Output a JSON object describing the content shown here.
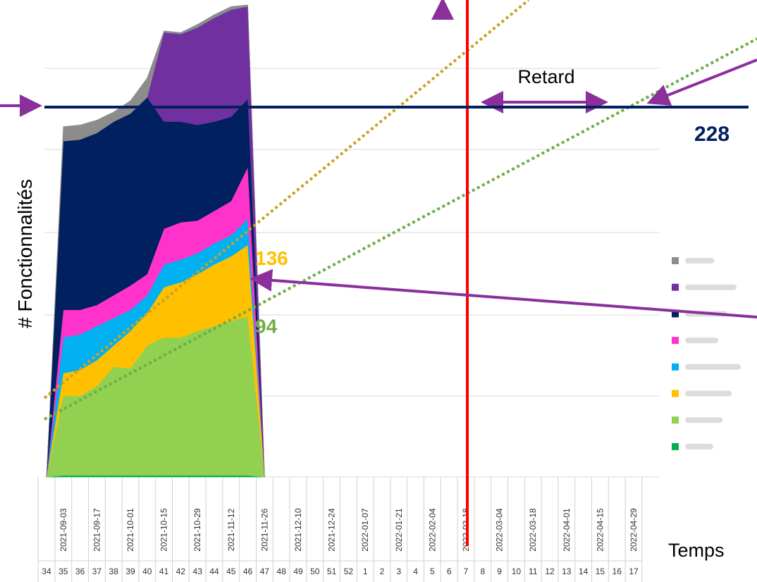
{
  "chart_data": {
    "type": "area",
    "stacked": true,
    "ylabel": "# Fonctionnalités",
    "xlabel": "Temps",
    "categories": [
      "34",
      "35",
      "36",
      "37",
      "38",
      "39",
      "40",
      "41",
      "42",
      "43",
      "44",
      "45",
      "46",
      "47",
      "48",
      "49",
      "50",
      "51",
      "52",
      "1",
      "2",
      "3",
      "4",
      "5",
      "6",
      "7",
      "8",
      "9",
      "10",
      "11",
      "12",
      "13",
      "14",
      "15",
      "16",
      "17"
    ],
    "dates": [
      null,
      "2021-09-03",
      null,
      "2021-09-17",
      null,
      "2021-10-01",
      null,
      "2021-10-15",
      null,
      "2021-10-29",
      null,
      "2021-11-12",
      null,
      "2021-11-26",
      null,
      "2021-12-10",
      null,
      "2021-12-24",
      null,
      "2022-01-07",
      null,
      "2022-01-21",
      null,
      "2022-02-04",
      null,
      "2022-02-18",
      null,
      "2022-03-04",
      null,
      "2022-03-18",
      null,
      "2022-04-01",
      null,
      "2022-04-15",
      null,
      "2022-04-29"
    ],
    "ylim": [
      0,
      294
    ],
    "series": [
      {
        "color": "#00b050",
        "values": [
          0,
          1,
          1,
          1,
          1,
          1,
          1,
          1,
          1,
          1,
          1,
          1,
          1,
          0,
          null,
          null,
          null,
          null,
          null,
          null,
          null,
          null,
          null,
          null,
          null,
          null,
          null,
          null,
          null,
          null,
          null,
          null,
          null,
          null,
          null,
          null
        ]
      },
      {
        "color": "#92d050",
        "values": [
          0,
          49,
          49,
          55,
          67,
          66,
          80,
          85,
          85,
          89,
          92,
          95,
          98,
          0,
          null,
          null,
          null,
          null,
          null,
          null,
          null,
          null,
          null,
          null,
          null,
          null,
          null,
          null,
          null,
          null,
          null,
          null,
          null,
          null,
          null,
          null
        ]
      },
      {
        "color": "#ffc000",
        "values": [
          0,
          14,
          16,
          16,
          13,
          23,
          20,
          31,
          34,
          35,
          38,
          40,
          44,
          0,
          null,
          null,
          null,
          null,
          null,
          null,
          null,
          null,
          null,
          null,
          null,
          null,
          null,
          null,
          null,
          null,
          null,
          null,
          null,
          null,
          null,
          null
        ]
      },
      {
        "color": "#00b0f0",
        "values": [
          0,
          22,
          22,
          21,
          17,
          13,
          11,
          14,
          14,
          13,
          13,
          13,
          16,
          0,
          null,
          null,
          null,
          null,
          null,
          null,
          null,
          null,
          null,
          null,
          null,
          null,
          null,
          null,
          null,
          null,
          null,
          null,
          null,
          null,
          null,
          null
        ]
      },
      {
        "color": "#ff33cc",
        "values": [
          0,
          17,
          15,
          13,
          14,
          15,
          13,
          22,
          23,
          20,
          20,
          21,
          32,
          0,
          null,
          null,
          null,
          null,
          null,
          null,
          null,
          null,
          null,
          null,
          null,
          null,
          null,
          null,
          null,
          null,
          null,
          null,
          null,
          null,
          null,
          null
        ]
      },
      {
        "color": "#002060",
        "values": [
          0,
          104,
          105,
          106,
          107,
          106,
          109,
          66,
          62,
          59,
          55,
          52,
          42,
          0,
          null,
          null,
          null,
          null,
          null,
          null,
          null,
          null,
          null,
          null,
          null,
          null,
          null,
          null,
          null,
          null,
          null,
          null,
          null,
          null,
          null,
          null
        ]
      },
      {
        "color": "#7030a0",
        "values": [
          0,
          0,
          0,
          0,
          0,
          0,
          0,
          55,
          54,
          60,
          64,
          66,
          57,
          0,
          null,
          null,
          null,
          null,
          null,
          null,
          null,
          null,
          null,
          null,
          null,
          null,
          null,
          null,
          null,
          null,
          null,
          null,
          null,
          null,
          null,
          null
        ]
      },
      {
        "color": "#8c8c8c",
        "values": [
          0,
          9,
          9,
          8,
          6,
          8,
          12,
          1,
          1,
          2,
          2,
          2,
          1,
          0,
          null,
          null,
          null,
          null,
          null,
          null,
          null,
          null,
          null,
          null,
          null,
          null,
          null,
          null,
          null,
          null,
          null,
          null,
          null,
          null,
          null,
          null
        ]
      }
    ],
    "target": {
      "value": 228,
      "color": "#002060"
    },
    "markers": [
      {
        "value": 136,
        "color": "#ffc000"
      },
      {
        "value": 94,
        "color": "#70ad47"
      }
    ],
    "annotation": "Retard"
  }
}
